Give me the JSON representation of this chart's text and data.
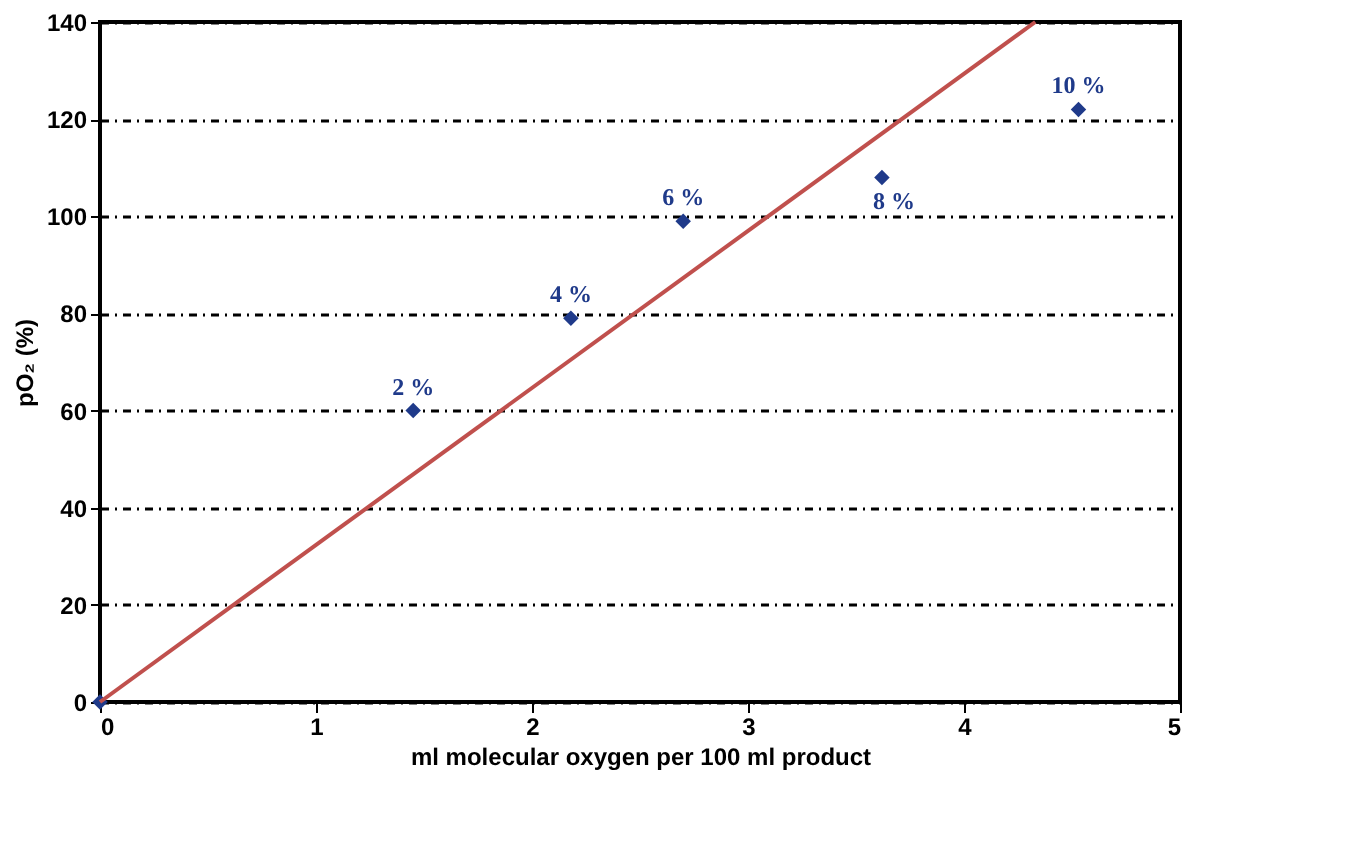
{
  "chart_data": {
    "type": "scatter",
    "xlabel": "ml molecular oxygen per 100 ml product",
    "ylabel": "pO₂ (%)",
    "xlim": [
      0,
      5
    ],
    "xticks": [
      0,
      1,
      2,
      3,
      4,
      5
    ],
    "ylim": [
      0,
      140
    ],
    "yticks": [
      0,
      20,
      40,
      60,
      80,
      100,
      120,
      140
    ],
    "grid": "y",
    "series": [
      {
        "marker": "diamond",
        "color": "#1f3a8a",
        "x": [
          0,
          1.45,
          2.18,
          2.7,
          3.62,
          4.53
        ],
        "values": [
          0,
          60,
          79,
          99,
          108,
          122
        ]
      },
      {
        "type": "line",
        "marker": "none",
        "color": "#c0504d",
        "x": [
          0,
          4.33
        ],
        "values": [
          0,
          140
        ],
        "line_style": "solid"
      }
    ],
    "annotations": [
      {
        "text": "2 %",
        "x": 1.45,
        "y": 60
      },
      {
        "text": "4 %",
        "x": 2.18,
        "y": 79
      },
      {
        "text": "6 %",
        "x": 2.7,
        "y": 99
      },
      {
        "text": "8 %",
        "x": 3.62,
        "y": 108
      },
      {
        "text": "10 %",
        "x": 4.53,
        "y": 122
      }
    ]
  }
}
